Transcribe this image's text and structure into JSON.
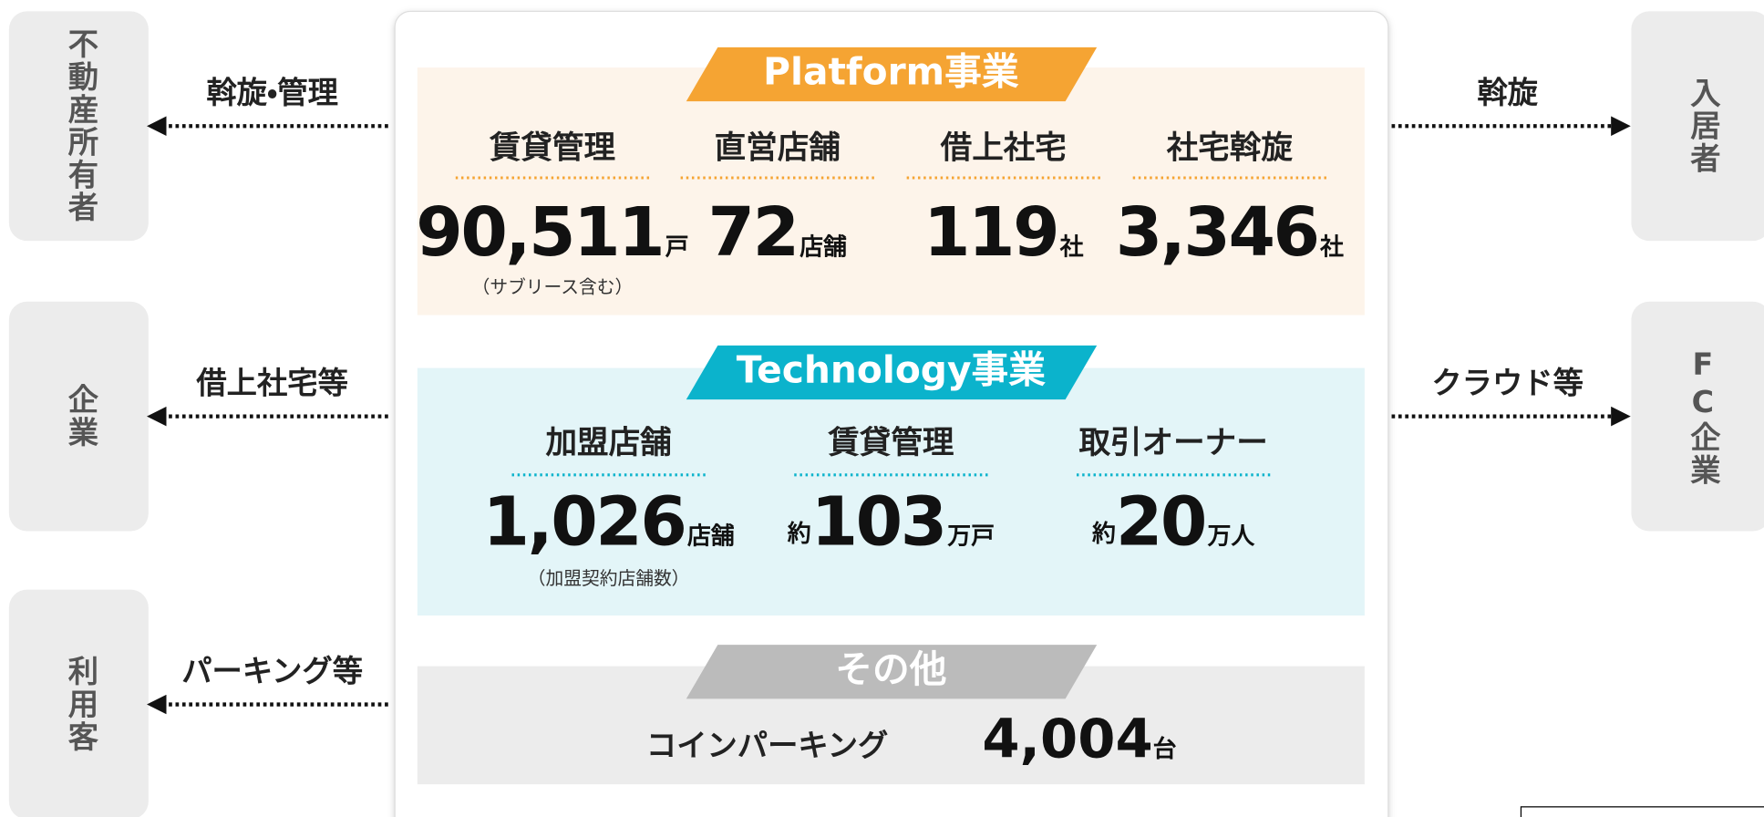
{
  "left": [
    {
      "entity": "不動産所有者",
      "relation": "斡旋・管理"
    },
    {
      "entity": "企業",
      "relation": "借上社宅等"
    },
    {
      "entity": "利用客",
      "relation": "パーキング等"
    }
  ],
  "right": [
    {
      "entity": "入居者",
      "relation": "斡旋"
    },
    {
      "entity": "FC企業",
      "relation": "クラウド等"
    }
  ],
  "sections": [
    {
      "title": "Platform事業",
      "items": [
        {
          "label": "賃貸管理",
          "number": "90,511",
          "unit": "戸",
          "note": "（サブリース含む）"
        },
        {
          "label": "直営店舗",
          "number": "72",
          "unit": "店舗"
        },
        {
          "label": "借上社宅",
          "number": "119",
          "unit": "社"
        },
        {
          "label": "社宅斡旋",
          "number": "3,346",
          "unit": "社"
        }
      ]
    },
    {
      "title": "Technology事業",
      "items": [
        {
          "label": "加盟店舗",
          "number": "1,026",
          "unit": "店舗",
          "note": "（加盟契約店舗数）"
        },
        {
          "label": "賃貸管理",
          "prefix": "約",
          "number": "103",
          "unit": "万戸"
        },
        {
          "label": "取引オーナー",
          "prefix": "約",
          "number": "20",
          "unit": "万人"
        }
      ]
    },
    {
      "title": "その他",
      "items": [
        {
          "label": "コインパーキング",
          "number": "4,004",
          "unit": "台"
        }
      ]
    }
  ]
}
